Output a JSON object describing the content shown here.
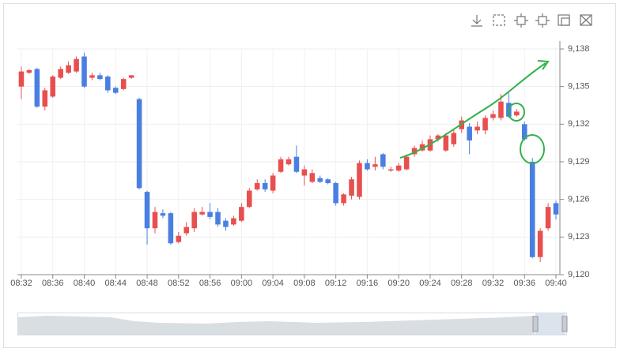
{
  "chart_data": {
    "type": "candlestick",
    "categories": [
      "08:32",
      null,
      null,
      null,
      "08:36",
      null,
      null,
      null,
      "08:40",
      null,
      null,
      null,
      "08:44",
      null,
      null,
      null,
      "08:48",
      null,
      null,
      null,
      "08:52",
      null,
      null,
      null,
      "08:56",
      null,
      null,
      null,
      "09:00",
      null,
      null,
      null,
      "09:04",
      null,
      null,
      null,
      "09:08",
      null,
      null,
      null,
      "09:12",
      null,
      null,
      null,
      "09:16",
      null,
      null,
      null,
      "09:20",
      null,
      null,
      null,
      "09:24",
      null,
      null,
      null,
      "09:28",
      null,
      null,
      null,
      "09:32",
      null,
      null,
      null,
      "09:36",
      null,
      null,
      null,
      "09:40"
    ],
    "values": [
      [
        9135.0,
        9136.6,
        9134.0,
        9136.2
      ],
      [
        9136.1,
        9136.4,
        9136.0,
        9136.3
      ],
      [
        9136.4,
        9136.5,
        9133.3,
        9133.4
      ],
      [
        9133.4,
        9134.9,
        9133.1,
        9134.7
      ],
      [
        9134.2,
        9135.9,
        9134.1,
        9135.8
      ],
      [
        9135.7,
        9136.6,
        9135.6,
        9136.4
      ],
      [
        9136.1,
        9137.0,
        9136.0,
        9136.7
      ],
      [
        9136.2,
        9137.4,
        9136.1,
        9137.2
      ],
      [
        9137.4,
        9137.7,
        9134.9,
        9135.0
      ],
      [
        9135.7,
        9136.1,
        9135.5,
        9135.9
      ],
      [
        9135.9,
        9136.1,
        9135.5,
        9135.6
      ],
      [
        9135.8,
        9135.9,
        9134.5,
        9134.7
      ],
      [
        9134.9,
        9135.0,
        9134.4,
        9134.5
      ],
      [
        9134.8,
        9135.7,
        9134.7,
        9135.6
      ],
      [
        9135.7,
        9135.9,
        9135.6,
        9135.9
      ],
      [
        9134.0,
        9134.1,
        9126.8,
        9126.9
      ],
      [
        9126.6,
        9126.7,
        9122.4,
        9123.7
      ],
      [
        9123.7,
        9125.4,
        9123.3,
        9125.0
      ],
      [
        9124.9,
        9125.2,
        9124.5,
        9124.7
      ],
      [
        9124.9,
        9125.0,
        9122.4,
        9122.5
      ],
      [
        9122.6,
        9123.4,
        9122.5,
        9123.1
      ],
      [
        9123.3,
        9124.2,
        9123.1,
        9123.8
      ],
      [
        9123.7,
        9125.3,
        9123.4,
        9125.0
      ],
      [
        9124.8,
        9125.4,
        9124.7,
        9125.0
      ],
      [
        9125.0,
        9125.7,
        9124.4,
        9124.6
      ],
      [
        9125.0,
        9125.3,
        9123.8,
        9124.0
      ],
      [
        9124.3,
        9124.5,
        9123.5,
        9123.8
      ],
      [
        9124.0,
        9124.7,
        9123.9,
        9124.5
      ],
      [
        9124.3,
        9125.7,
        9124.2,
        9125.4
      ],
      [
        9125.4,
        9126.9,
        9125.3,
        9126.7
      ],
      [
        9126.8,
        9127.6,
        9126.7,
        9127.3
      ],
      [
        9127.3,
        9127.6,
        9126.6,
        9126.8
      ],
      [
        9126.7,
        9128.1,
        9126.5,
        9127.9
      ],
      [
        9128.2,
        9129.4,
        9128.1,
        9129.2
      ],
      [
        9128.8,
        9129.4,
        9128.7,
        9129.2
      ],
      [
        9129.4,
        9130.3,
        9128.1,
        9128.2
      ],
      [
        9127.9,
        9128.7,
        9127.1,
        9128.4
      ],
      [
        9127.4,
        9128.4,
        9127.3,
        9128.1
      ],
      [
        9127.7,
        9127.9,
        9127.3,
        9127.4
      ],
      [
        9127.6,
        9127.7,
        9127.2,
        9127.3
      ],
      [
        9127.3,
        9127.4,
        9125.5,
        9125.7
      ],
      [
        9125.7,
        9126.5,
        9125.5,
        9126.4
      ],
      [
        9126.3,
        9127.8,
        9126.0,
        9127.6
      ],
      [
        9126.2,
        9129.1,
        9126.0,
        9128.9
      ],
      [
        9128.9,
        9129.2,
        9128.3,
        9128.4
      ],
      [
        9128.6,
        9129.4,
        9128.3,
        9128.8
      ],
      [
        9129.6,
        9129.7,
        9128.4,
        9128.6
      ],
      [
        9128.3,
        9128.6,
        9128.2,
        9128.4
      ],
      [
        9128.3,
        9128.9,
        9128.2,
        9128.7
      ],
      [
        9128.4,
        9129.6,
        9128.3,
        9129.4
      ],
      [
        9129.6,
        9130.3,
        9129.4,
        9130.1
      ],
      [
        9129.9,
        9130.7,
        9129.8,
        9130.4
      ],
      [
        9129.9,
        9131.1,
        9129.8,
        9130.8
      ],
      [
        9130.8,
        9131.2,
        9130.6,
        9131.1
      ],
      [
        9129.9,
        9131.3,
        9129.8,
        9131.1
      ],
      [
        9130.4,
        9131.6,
        9130.2,
        9131.3
      ],
      [
        9131.6,
        9132.6,
        9131.3,
        9132.3
      ],
      [
        9131.8,
        9132.1,
        9129.6,
        9130.7
      ],
      [
        9131.5,
        9132.2,
        9131.2,
        9131.8
      ],
      [
        9131.5,
        9132.7,
        9131.2,
        9132.5
      ],
      [
        9132.5,
        9133.1,
        9132.3,
        9132.8
      ],
      [
        9132.5,
        9134.4,
        9132.3,
        9133.8
      ],
      [
        9133.7,
        9134.5,
        9132.5,
        9132.6
      ],
      [
        9132.7,
        9133.2,
        9132.6,
        9133.0
      ],
      [
        9132.0,
        9132.2,
        9130.7,
        9130.8
      ],
      [
        9129.0,
        9129.3,
        9121.3,
        9121.4
      ],
      [
        9121.4,
        9123.7,
        9121.0,
        9123.5
      ],
      [
        9123.7,
        9125.7,
        9123.5,
        9125.4
      ],
      [
        9125.7,
        9125.9,
        9124.4,
        9124.8
      ]
    ],
    "up_color": "#e84f4f",
    "down_color": "#4a7fe2",
    "ylim": [
      9120,
      9138
    ],
    "yticks": [
      {
        "value": 9120,
        "label": "9,120"
      },
      {
        "value": 9123,
        "label": "9,123"
      },
      {
        "value": 9126,
        "label": "9,126"
      },
      {
        "value": 9129,
        "label": "9,129"
      },
      {
        "value": 9132,
        "label": "9,132"
      },
      {
        "value": 9135,
        "label": "9,135"
      },
      {
        "value": 9138,
        "label": "9,138"
      }
    ],
    "grid": true
  }
}
